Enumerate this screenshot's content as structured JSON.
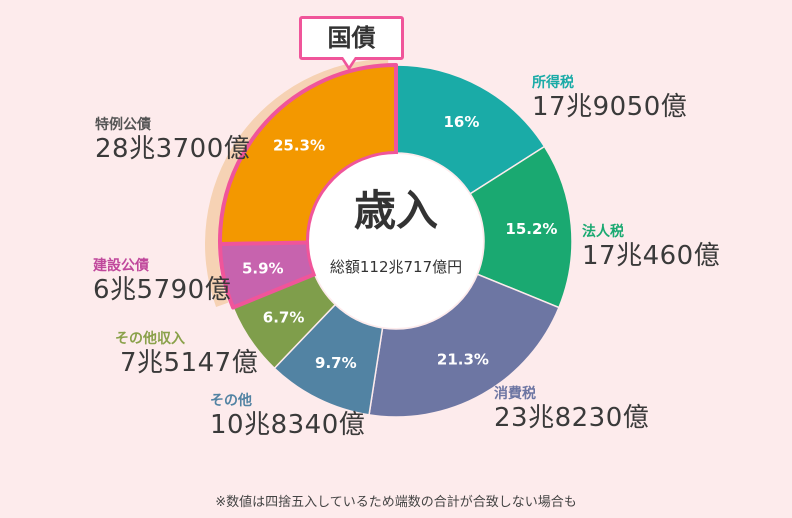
{
  "chart_data": {
    "type": "pie",
    "title": "歳入",
    "total": "総額112兆717億円",
    "highlight_label": "国債",
    "slices": [
      {
        "name": "所得税",
        "amount": "17兆9050億",
        "percent": 16,
        "percent_label": "16%",
        "color": "#1aaba7",
        "name_color": "#1aaba7"
      },
      {
        "name": "法人税",
        "amount": "17兆460億",
        "percent": 15.2,
        "percent_label": "15.2%",
        "color": "#1aa971",
        "name_color": "#1aa971"
      },
      {
        "name": "消費税",
        "amount": "23兆8230億",
        "percent": 21.3,
        "percent_label": "21.3%",
        "color": "#6d76a3",
        "name_color": "#6d76a3"
      },
      {
        "name": "その他",
        "amount": "10兆8340億",
        "percent": 9.7,
        "percent_label": "9.7%",
        "color": "#5283a3",
        "name_color": "#5283a3"
      },
      {
        "name": "その他収入",
        "amount": "7兆5147億",
        "percent": 6.7,
        "percent_label": "6.7%",
        "color": "#7f9e4b",
        "name_color": "#8aa14a"
      },
      {
        "name": "建設公債",
        "amount": "6兆5790億",
        "percent": 5.9,
        "percent_label": "5.9%",
        "color": "#c763ae",
        "name_color": "#c0489c"
      },
      {
        "name": "特例公債",
        "amount": "28兆3700億",
        "percent": 25.3,
        "percent_label": "25.3%",
        "color": "#f39800",
        "name_color": "#555555"
      }
    ],
    "colors": {
      "highlight_border": "#f0559a",
      "highlight_shadow": "#f6d2b4"
    }
  },
  "footnote": "※数値は四捨五入しているため端数の合計が合致しない場合も"
}
